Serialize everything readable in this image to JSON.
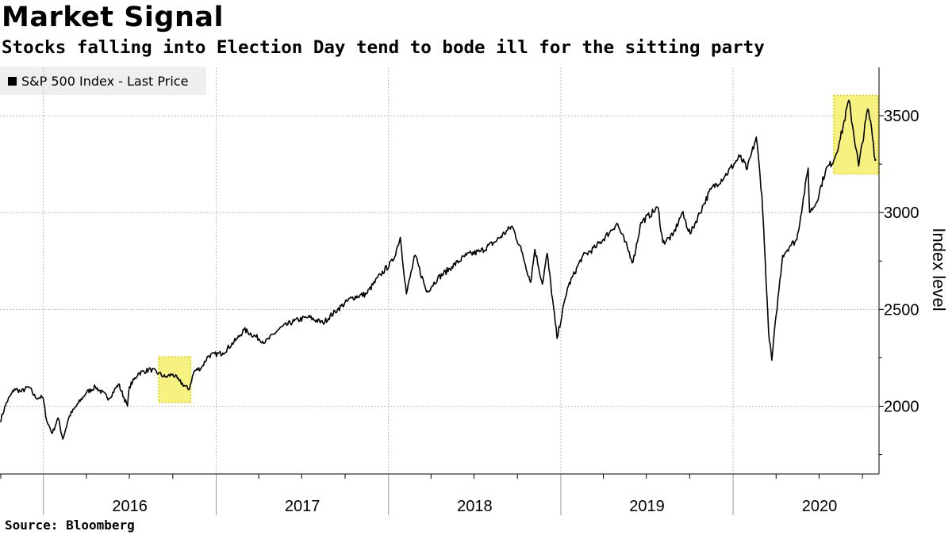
{
  "header": {
    "title": "Market Signal",
    "subtitle": "Stocks falling into Election Day tend to bode ill for the sitting party"
  },
  "footer": {
    "source": "Source: Bloomberg"
  },
  "colors": {
    "line": "#000000",
    "highlight": "#f5ef6a",
    "highlight_border": "#e3d400",
    "grid": "#bdbdbd",
    "legend_bg": "#efefef"
  },
  "chart_data": {
    "type": "line",
    "title": "Market Signal",
    "subtitle": "Stocks falling into Election Day tend to bode ill for the sitting party",
    "ylabel": "Index level",
    "xlabel": "",
    "ylim": [
      1650,
      3750
    ],
    "xlim": [
      "2015-10-01",
      "2020-11-05"
    ],
    "yticks": [
      2000,
      2500,
      3000,
      3500
    ],
    "xtick_labels": [
      "2016",
      "2017",
      "2018",
      "2019",
      "2020"
    ],
    "grid": true,
    "legend_position": "top-left",
    "series": [
      {
        "name": "S&P 500 Index - Last Price",
        "points": [
          [
            "2015-10-01",
            1920
          ],
          [
            "2015-10-15",
            2020
          ],
          [
            "2015-11-01",
            2090
          ],
          [
            "2015-11-15",
            2075
          ],
          [
            "2015-12-01",
            2100
          ],
          [
            "2015-12-15",
            2045
          ],
          [
            "2015-12-31",
            2045
          ],
          [
            "2016-01-08",
            1925
          ],
          [
            "2016-01-20",
            1860
          ],
          [
            "2016-02-01",
            1940
          ],
          [
            "2016-02-11",
            1830
          ],
          [
            "2016-02-25",
            1950
          ],
          [
            "2016-03-15",
            2015
          ],
          [
            "2016-04-01",
            2070
          ],
          [
            "2016-04-20",
            2100
          ],
          [
            "2016-05-19",
            2040
          ],
          [
            "2016-06-08",
            2115
          ],
          [
            "2016-06-27",
            2000
          ],
          [
            "2016-07-01",
            2100
          ],
          [
            "2016-07-20",
            2170
          ],
          [
            "2016-08-15",
            2190
          ],
          [
            "2016-09-01",
            2170
          ],
          [
            "2016-09-15",
            2150
          ],
          [
            "2016-10-01",
            2165
          ],
          [
            "2016-10-15",
            2130
          ],
          [
            "2016-11-04",
            2085
          ],
          [
            "2016-11-15",
            2180
          ],
          [
            "2016-12-01",
            2200
          ],
          [
            "2016-12-15",
            2260
          ],
          [
            "2017-01-15",
            2275
          ],
          [
            "2017-02-15",
            2350
          ],
          [
            "2017-03-01",
            2395
          ],
          [
            "2017-04-15",
            2330
          ],
          [
            "2017-05-15",
            2400
          ],
          [
            "2017-06-15",
            2440
          ],
          [
            "2017-07-15",
            2460
          ],
          [
            "2017-08-15",
            2430
          ],
          [
            "2017-09-15",
            2500
          ],
          [
            "2017-10-15",
            2560
          ],
          [
            "2017-11-15",
            2580
          ],
          [
            "2017-12-15",
            2680
          ],
          [
            "2018-01-10",
            2750
          ],
          [
            "2018-01-26",
            2872
          ],
          [
            "2018-02-08",
            2580
          ],
          [
            "2018-02-26",
            2780
          ],
          [
            "2018-03-23",
            2590
          ],
          [
            "2018-04-15",
            2660
          ],
          [
            "2018-05-15",
            2720
          ],
          [
            "2018-06-15",
            2780
          ],
          [
            "2018-07-15",
            2800
          ],
          [
            "2018-08-15",
            2850
          ],
          [
            "2018-09-20",
            2930
          ],
          [
            "2018-10-10",
            2800
          ],
          [
            "2018-10-29",
            2640
          ],
          [
            "2018-11-07",
            2810
          ],
          [
            "2018-11-23",
            2630
          ],
          [
            "2018-12-03",
            2790
          ],
          [
            "2018-12-24",
            2350
          ],
          [
            "2019-01-15",
            2610
          ],
          [
            "2019-02-15",
            2770
          ],
          [
            "2019-03-15",
            2820
          ],
          [
            "2019-04-15",
            2900
          ],
          [
            "2019-04-30",
            2945
          ],
          [
            "2019-06-03",
            2745
          ],
          [
            "2019-06-20",
            2950
          ],
          [
            "2019-07-26",
            3025
          ],
          [
            "2019-08-05",
            2845
          ],
          [
            "2019-08-26",
            2880
          ],
          [
            "2019-09-15",
            3000
          ],
          [
            "2019-10-02",
            2890
          ],
          [
            "2019-10-30",
            3040
          ],
          [
            "2019-11-15",
            3120
          ],
          [
            "2019-12-15",
            3190
          ],
          [
            "2020-01-15",
            3290
          ],
          [
            "2020-01-31",
            3225
          ],
          [
            "2020-02-19",
            3390
          ],
          [
            "2020-03-02",
            3090
          ],
          [
            "2020-03-09",
            2750
          ],
          [
            "2020-03-16",
            2385
          ],
          [
            "2020-03-23",
            2237
          ],
          [
            "2020-04-01",
            2470
          ],
          [
            "2020-04-15",
            2780
          ],
          [
            "2020-05-01",
            2830
          ],
          [
            "2020-05-15",
            2860
          ],
          [
            "2020-06-08",
            3230
          ],
          [
            "2020-06-11",
            3000
          ],
          [
            "2020-06-25",
            3050
          ],
          [
            "2020-07-15",
            3220
          ],
          [
            "2020-08-01",
            3270
          ],
          [
            "2020-08-15",
            3380
          ],
          [
            "2020-09-02",
            3580
          ],
          [
            "2020-09-23",
            3240
          ],
          [
            "2020-10-12",
            3535
          ],
          [
            "2020-10-20",
            3440
          ],
          [
            "2020-10-28",
            3270
          ],
          [
            "2020-10-30",
            3270
          ]
        ]
      }
    ],
    "highlights": [
      {
        "x_start": "2016-09-01",
        "x_end": "2016-11-08",
        "y_start": 2020,
        "y_end": 2255
      },
      {
        "x_start": "2020-08-01",
        "x_end": "2020-11-03",
        "y_start": 3200,
        "y_end": 3605
      }
    ]
  }
}
